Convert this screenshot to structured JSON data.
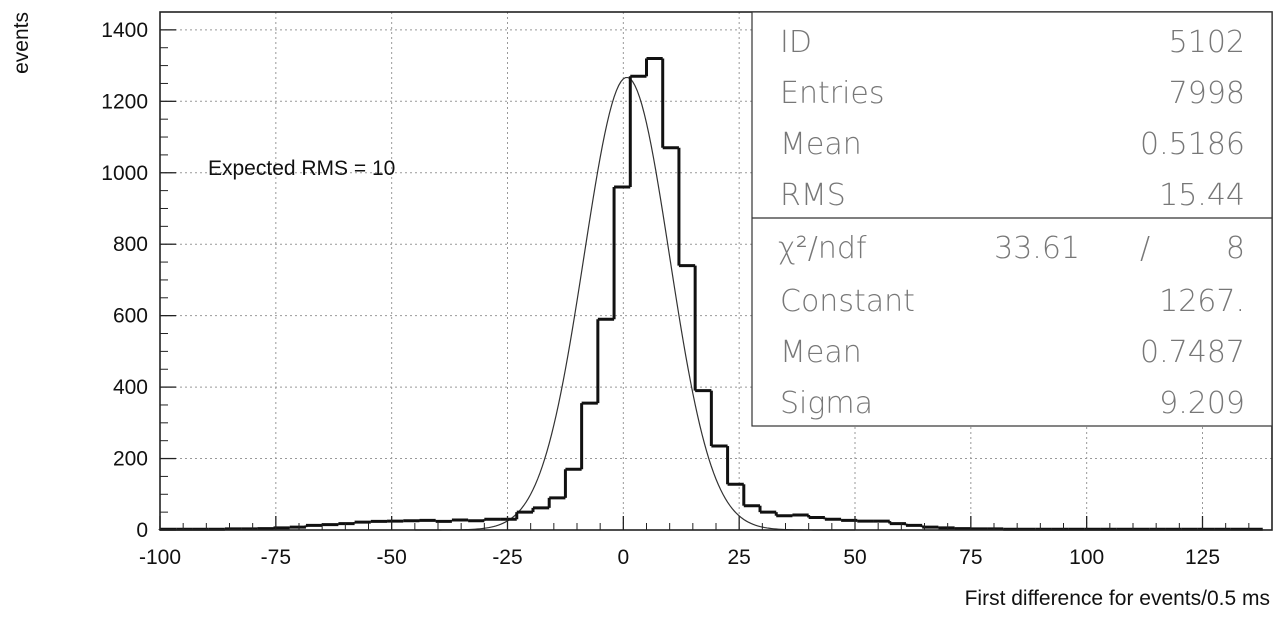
{
  "chart_data": {
    "type": "bar",
    "xlabel": "First difference for  events/0.5 ms",
    "ylabel": "events",
    "xlim": [
      -100,
      140
    ],
    "ylim": [
      0,
      1450
    ],
    "x_ticks": [
      -100,
      -75,
      -50,
      -25,
      0,
      25,
      50,
      75,
      100,
      125
    ],
    "y_ticks": [
      0,
      200,
      400,
      600,
      800,
      1000,
      1200,
      1400
    ],
    "grid": true,
    "bin_width": 3.5,
    "bin_start": -100,
    "series": [
      {
        "values": [
          2,
          2,
          2,
          2,
          3,
          3,
          4,
          6,
          8,
          13,
          15,
          18,
          22,
          24,
          25,
          26,
          27,
          24,
          28,
          26,
          30,
          30,
          50,
          62,
          90,
          170,
          355,
          590,
          960,
          1270,
          1320,
          1070,
          740,
          390,
          235,
          128,
          68,
          50,
          40,
          42,
          35,
          30,
          27,
          25,
          25,
          18,
          13,
          8,
          6,
          4,
          3,
          3,
          2,
          2,
          2,
          2,
          2,
          2,
          2,
          2,
          2,
          2,
          2,
          2,
          2,
          2,
          2,
          2
        ]
      }
    ],
    "fit": {
      "type": "gaussian",
      "constant": 1267,
      "mean": 0.7487,
      "sigma": 9.209,
      "tail_note": "visible smooth fit curve"
    },
    "annotation": "Expected RMS = 10",
    "stats_box": {
      "upper": [
        {
          "label": "ID",
          "value": "5102"
        },
        {
          "label": "Entries",
          "value": "7998"
        },
        {
          "label": "Mean",
          "value": "0.5186"
        },
        {
          "label": "RMS",
          "value": "15.44"
        }
      ],
      "chi2_label": "χ²/ndf",
      "chi2_value": "33.61",
      "chi2_sep": "/",
      "ndf_value": "8",
      "lower": [
        {
          "label": "Constant",
          "value": "1267."
        },
        {
          "label": "Mean",
          "value": "0.7487"
        },
        {
          "label": "Sigma",
          "value": "9.209"
        }
      ]
    }
  }
}
